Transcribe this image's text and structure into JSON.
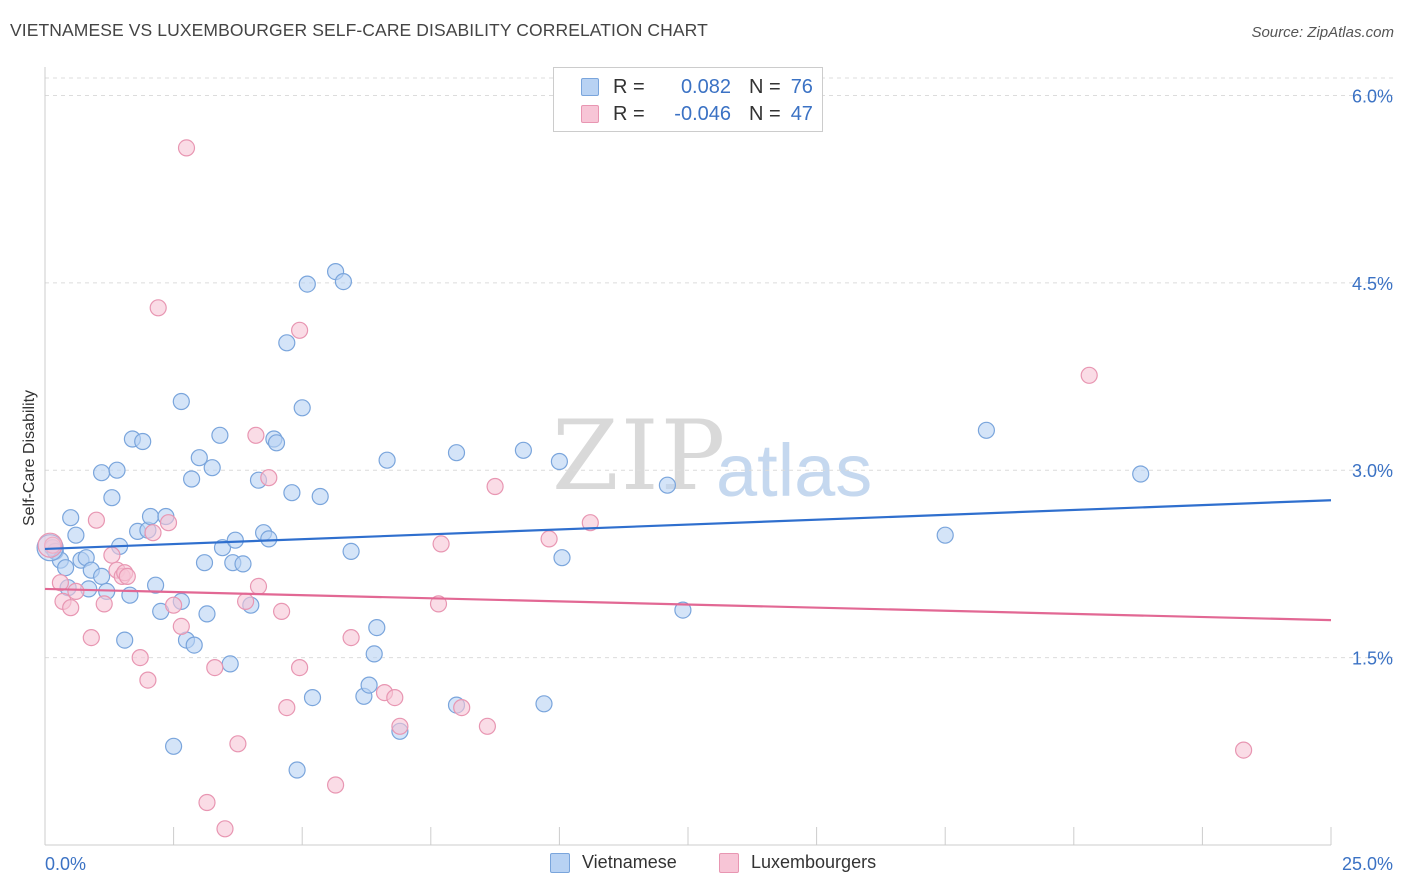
{
  "header": {
    "title": "VIETNAMESE VS LUXEMBOURGER SELF-CARE DISABILITY CORRELATION CHART",
    "source": "Source: ZipAtlas.com"
  },
  "watermark": {
    "zip": "ZIP",
    "atlas": "atlas"
  },
  "legend": {
    "rows": [
      {
        "r_label": "R =",
        "r_value": "0.082",
        "n_label": "N =",
        "n_value": "76"
      },
      {
        "r_label": "R =",
        "r_value": "-0.046",
        "n_label": "N =",
        "n_value": "47"
      }
    ]
  },
  "colors": {
    "blue_fill": "#b8d2f3",
    "blue_stroke": "#7aa5dc",
    "blue_line": "#2f6fce",
    "pink_fill": "#f7c5d6",
    "pink_stroke": "#e896b2",
    "pink_line": "#e26894",
    "tick_text": "#3b72c4"
  },
  "chart_data": {
    "type": "scatter",
    "title": "VIETNAMESE VS LUXEMBOURGER SELF-CARE DISABILITY CORRELATION CHART",
    "xlabel": "",
    "ylabel": "Self-Care Disability",
    "xlim": [
      0,
      25
    ],
    "ylim": [
      0,
      6.3
    ],
    "x_tick_labels": [
      "0.0%",
      "25.0%"
    ],
    "y_ticks": [
      1.5,
      3.0,
      4.5,
      6.0
    ],
    "y_tick_labels": [
      "1.5%",
      "3.0%",
      "4.5%",
      "6.0%"
    ],
    "grid": "horizontal dashed",
    "legend_position": "top-center",
    "series": [
      {
        "name": "Vietnamese",
        "r": 0.082,
        "n": 76,
        "trend": {
          "x": [
            0,
            25
          ],
          "y": [
            2.37,
            2.76
          ]
        },
        "points": [
          [
            0.15,
            2.38
          ],
          [
            0.2,
            2.35
          ],
          [
            0.3,
            2.28
          ],
          [
            0.4,
            2.22
          ],
          [
            0.45,
            2.06
          ],
          [
            0.5,
            2.62
          ],
          [
            0.6,
            2.48
          ],
          [
            0.7,
            2.28
          ],
          [
            0.8,
            2.3
          ],
          [
            0.85,
            2.05
          ],
          [
            0.9,
            2.2
          ],
          [
            1.1,
            2.98
          ],
          [
            1.1,
            2.15
          ],
          [
            1.2,
            2.03
          ],
          [
            1.3,
            2.78
          ],
          [
            1.4,
            3.0
          ],
          [
            1.45,
            2.39
          ],
          [
            1.55,
            1.64
          ],
          [
            1.65,
            2.0
          ],
          [
            1.7,
            3.25
          ],
          [
            1.8,
            2.51
          ],
          [
            1.9,
            3.23
          ],
          [
            2.0,
            2.52
          ],
          [
            2.05,
            2.63
          ],
          [
            2.15,
            2.08
          ],
          [
            2.25,
            1.87
          ],
          [
            2.35,
            2.63
          ],
          [
            2.5,
            0.79
          ],
          [
            2.65,
            1.95
          ],
          [
            2.65,
            3.55
          ],
          [
            2.75,
            1.64
          ],
          [
            2.85,
            2.93
          ],
          [
            2.9,
            1.6
          ],
          [
            3.0,
            3.1
          ],
          [
            3.1,
            2.26
          ],
          [
            3.15,
            1.85
          ],
          [
            3.25,
            3.02
          ],
          [
            3.4,
            3.28
          ],
          [
            3.45,
            2.38
          ],
          [
            3.6,
            1.45
          ],
          [
            3.65,
            2.26
          ],
          [
            3.7,
            2.44
          ],
          [
            3.85,
            2.25
          ],
          [
            4.0,
            1.92
          ],
          [
            4.15,
            2.92
          ],
          [
            4.25,
            2.5
          ],
          [
            4.35,
            2.45
          ],
          [
            4.45,
            3.25
          ],
          [
            4.5,
            3.22
          ],
          [
            4.7,
            4.02
          ],
          [
            4.8,
            2.82
          ],
          [
            4.9,
            0.6
          ],
          [
            5.0,
            3.5
          ],
          [
            5.1,
            4.49
          ],
          [
            5.2,
            1.18
          ],
          [
            5.35,
            2.79
          ],
          [
            5.65,
            4.59
          ],
          [
            5.8,
            4.51
          ],
          [
            5.95,
            2.35
          ],
          [
            6.2,
            1.19
          ],
          [
            6.3,
            1.28
          ],
          [
            6.4,
            1.53
          ],
          [
            6.45,
            1.74
          ],
          [
            6.65,
            3.08
          ],
          [
            6.9,
            0.91
          ],
          [
            8.0,
            1.12
          ],
          [
            8.0,
            3.14
          ],
          [
            9.3,
            3.16
          ],
          [
            9.7,
            1.13
          ],
          [
            10.0,
            3.07
          ],
          [
            10.05,
            2.3
          ],
          [
            12.1,
            2.88
          ],
          [
            12.4,
            1.88
          ],
          [
            17.5,
            2.48
          ],
          [
            18.3,
            3.32
          ],
          [
            21.3,
            2.97
          ]
        ]
      },
      {
        "name": "Luxembourgers",
        "r": -0.046,
        "n": 47,
        "trend": {
          "x": [
            0,
            25
          ],
          "y": [
            2.05,
            1.8
          ]
        },
        "points": [
          [
            0.15,
            2.4
          ],
          [
            0.3,
            2.1
          ],
          [
            0.35,
            1.95
          ],
          [
            0.5,
            1.9
          ],
          [
            0.6,
            2.03
          ],
          [
            0.9,
            1.66
          ],
          [
            1.0,
            2.6
          ],
          [
            1.15,
            1.93
          ],
          [
            1.3,
            2.32
          ],
          [
            1.4,
            2.2
          ],
          [
            1.5,
            2.15
          ],
          [
            1.55,
            2.18
          ],
          [
            1.6,
            2.15
          ],
          [
            1.85,
            1.5
          ],
          [
            2.0,
            1.32
          ],
          [
            2.1,
            2.5
          ],
          [
            2.2,
            4.3
          ],
          [
            2.4,
            2.58
          ],
          [
            2.5,
            1.92
          ],
          [
            2.65,
            1.75
          ],
          [
            2.75,
            5.58
          ],
          [
            3.15,
            0.34
          ],
          [
            3.3,
            1.42
          ],
          [
            3.5,
            0.13
          ],
          [
            3.75,
            0.81
          ],
          [
            3.9,
            1.95
          ],
          [
            4.1,
            3.28
          ],
          [
            4.15,
            2.07
          ],
          [
            4.35,
            2.94
          ],
          [
            4.6,
            1.87
          ],
          [
            4.7,
            1.1
          ],
          [
            4.95,
            4.12
          ],
          [
            4.95,
            1.42
          ],
          [
            5.65,
            0.48
          ],
          [
            5.95,
            1.66
          ],
          [
            6.6,
            1.22
          ],
          [
            6.8,
            1.18
          ],
          [
            6.9,
            0.95
          ],
          [
            7.65,
            1.93
          ],
          [
            7.7,
            2.41
          ],
          [
            8.1,
            1.1
          ],
          [
            8.6,
            0.95
          ],
          [
            8.75,
            2.87
          ],
          [
            9.8,
            2.45
          ],
          [
            10.6,
            2.58
          ],
          [
            20.3,
            3.76
          ],
          [
            23.3,
            0.76
          ]
        ]
      }
    ]
  },
  "bottom_legend": {
    "items": [
      "Vietnamese",
      "Luxembourgers"
    ]
  }
}
